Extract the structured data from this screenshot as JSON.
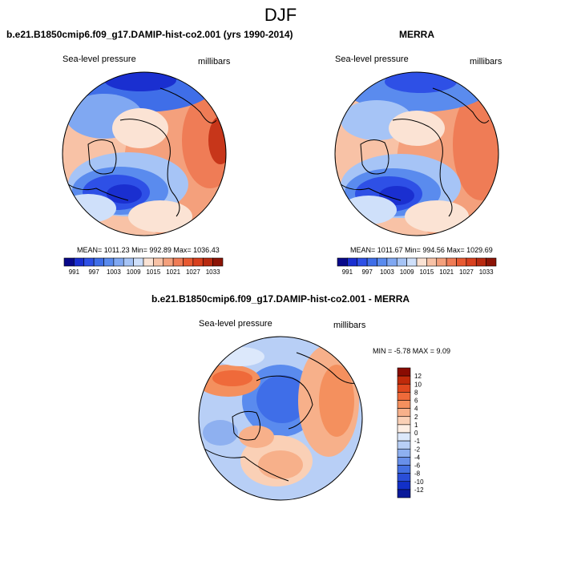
{
  "figure_title": "DJF",
  "panels": [
    {
      "title": "b.e21.B1850cmip6.f09_g17.DAMIP-hist-co2.001 (yrs 1990-2014)",
      "left_label": "Sea-level pressure",
      "right_label": "millibars",
      "stats": "MEAN= 1011.23  Min= 992.89  Max= 1036.43"
    },
    {
      "title": "MERRA",
      "left_label": "Sea-level pressure",
      "right_label": "millibars",
      "stats": "MEAN= 1011.67  Min= 994.56  Max= 1029.69"
    },
    {
      "title": "b.e21.B1850cmip6.f09_g17.DAMIP-hist-co2.001 - MERRA",
      "left_label": "Sea-level pressure",
      "right_label": "millibars",
      "stats": "MIN =  -5.78 MAX =   9.09"
    }
  ],
  "colorbar_slp": {
    "labels": [
      "991",
      "997",
      "1003",
      "1009",
      "1015",
      "1021",
      "1027",
      "1033"
    ],
    "colors": [
      "#08088a",
      "#1a2fd0",
      "#2e50e6",
      "#3f6ee8",
      "#5a8bee",
      "#80a8f2",
      "#a6c4f6",
      "#cfe0fa",
      "#fbe3d4",
      "#f8c2a6",
      "#f4a07c",
      "#ef7c56",
      "#e85a32",
      "#d8401e",
      "#b82a10",
      "#8c1406"
    ]
  },
  "colorbar_diff": {
    "labels": [
      "12",
      "10",
      "8",
      "6",
      "4",
      "2",
      "1",
      "0",
      "-1",
      "-2",
      "-4",
      "-6",
      "-8",
      "-10",
      "-12"
    ],
    "colors": [
      "#8a0c02",
      "#c02a0a",
      "#e0481e",
      "#ef6a3a",
      "#f4905e",
      "#f7b08a",
      "#fad0b6",
      "#fdeee4",
      "#dce8fb",
      "#b8cff6",
      "#8eb0f0",
      "#6890ea",
      "#4470e2",
      "#2a4ed8",
      "#1230c8",
      "#0a1a9a"
    ]
  }
}
